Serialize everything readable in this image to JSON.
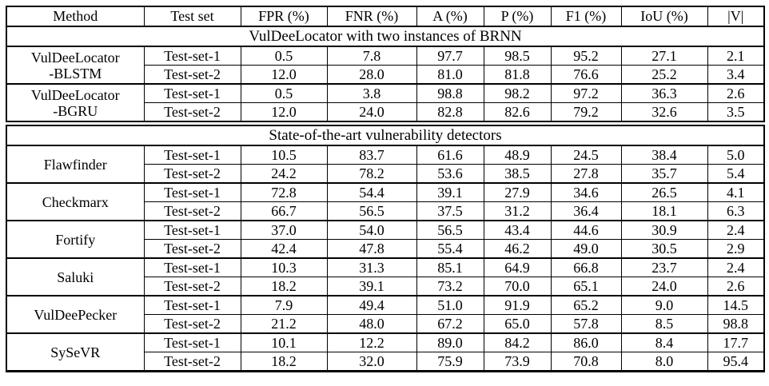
{
  "page": {
    "background_color": "#ffffff",
    "text_color": "#000000",
    "border_color": "#000000"
  },
  "table": {
    "columns": [
      "Method",
      "Test set",
      "FPR (%)",
      "FNR (%)",
      "A (%)",
      "P (%)",
      "F1 (%)",
      "IoU (%)",
      "|V|"
    ],
    "sections": [
      {
        "title": "VulDeeLocator with two instances of BRNN",
        "groups": [
          {
            "method_lines": [
              "VulDeeLocator",
              "-BLSTM"
            ],
            "rows": [
              {
                "test_set": "Test-set-1",
                "values": [
                  "0.5",
                  "7.8",
                  "97.7",
                  "98.5",
                  "95.2",
                  "27.1",
                  "2.1"
                ]
              },
              {
                "test_set": "Test-set-2",
                "values": [
                  "12.0",
                  "28.0",
                  "81.0",
                  "81.8",
                  "76.6",
                  "25.2",
                  "3.4"
                ]
              }
            ]
          },
          {
            "method_lines": [
              "VulDeeLocator",
              "-BGRU"
            ],
            "rows": [
              {
                "test_set": "Test-set-1",
                "values": [
                  "0.5",
                  "3.8",
                  "98.8",
                  "98.2",
                  "97.2",
                  "36.3",
                  "2.6"
                ]
              },
              {
                "test_set": "Test-set-2",
                "values": [
                  "12.0",
                  "24.0",
                  "82.8",
                  "82.6",
                  "79.2",
                  "32.6",
                  "3.5"
                ]
              }
            ]
          }
        ]
      },
      {
        "title": "State-of-the-art vulnerability detectors",
        "groups": [
          {
            "method_lines": [
              "Flawfinder"
            ],
            "rows": [
              {
                "test_set": "Test-set-1",
                "values": [
                  "10.5",
                  "83.7",
                  "61.6",
                  "48.9",
                  "24.5",
                  "38.4",
                  "5.0"
                ]
              },
              {
                "test_set": "Test-set-2",
                "values": [
                  "24.2",
                  "78.2",
                  "53.6",
                  "38.5",
                  "27.8",
                  "35.7",
                  "5.4"
                ]
              }
            ]
          },
          {
            "method_lines": [
              "Checkmarx"
            ],
            "rows": [
              {
                "test_set": "Test-set-1",
                "values": [
                  "72.8",
                  "54.4",
                  "39.1",
                  "27.9",
                  "34.6",
                  "26.5",
                  "4.1"
                ]
              },
              {
                "test_set": "Test-set-2",
                "values": [
                  "66.7",
                  "56.5",
                  "37.5",
                  "31.2",
                  "36.4",
                  "18.1",
                  "6.3"
                ]
              }
            ]
          },
          {
            "method_lines": [
              "Fortify"
            ],
            "rows": [
              {
                "test_set": "Test-set-1",
                "values": [
                  "37.0",
                  "54.0",
                  "56.5",
                  "43.4",
                  "44.6",
                  "30.9",
                  "2.4"
                ]
              },
              {
                "test_set": "Test-set-2",
                "values": [
                  "42.4",
                  "47.8",
                  "55.4",
                  "46.2",
                  "49.0",
                  "30.5",
                  "2.9"
                ]
              }
            ]
          },
          {
            "method_lines": [
              "Saluki"
            ],
            "rows": [
              {
                "test_set": "Test-set-1",
                "values": [
                  "10.3",
                  "31.3",
                  "85.1",
                  "64.9",
                  "66.8",
                  "23.7",
                  "2.4"
                ]
              },
              {
                "test_set": "Test-set-2",
                "values": [
                  "18.2",
                  "39.1",
                  "73.2",
                  "70.0",
                  "65.1",
                  "24.0",
                  "2.6"
                ]
              }
            ]
          },
          {
            "method_lines": [
              "VulDeePecker"
            ],
            "rows": [
              {
                "test_set": "Test-set-1",
                "values": [
                  "7.9",
                  "49.4",
                  "51.0",
                  "91.9",
                  "65.2",
                  "9.0",
                  "14.5"
                ]
              },
              {
                "test_set": "Test-set-2",
                "values": [
                  "21.2",
                  "48.0",
                  "67.2",
                  "65.0",
                  "57.8",
                  "8.5",
                  "98.8"
                ]
              }
            ]
          },
          {
            "method_lines": [
              "SySeVR"
            ],
            "rows": [
              {
                "test_set": "Test-set-1",
                "values": [
                  "10.1",
                  "12.2",
                  "89.0",
                  "84.2",
                  "86.0",
                  "8.4",
                  "17.7"
                ]
              },
              {
                "test_set": "Test-set-2",
                "values": [
                  "18.2",
                  "32.0",
                  "75.9",
                  "73.9",
                  "70.8",
                  "8.0",
                  "95.4"
                ]
              }
            ]
          }
        ]
      }
    ]
  }
}
